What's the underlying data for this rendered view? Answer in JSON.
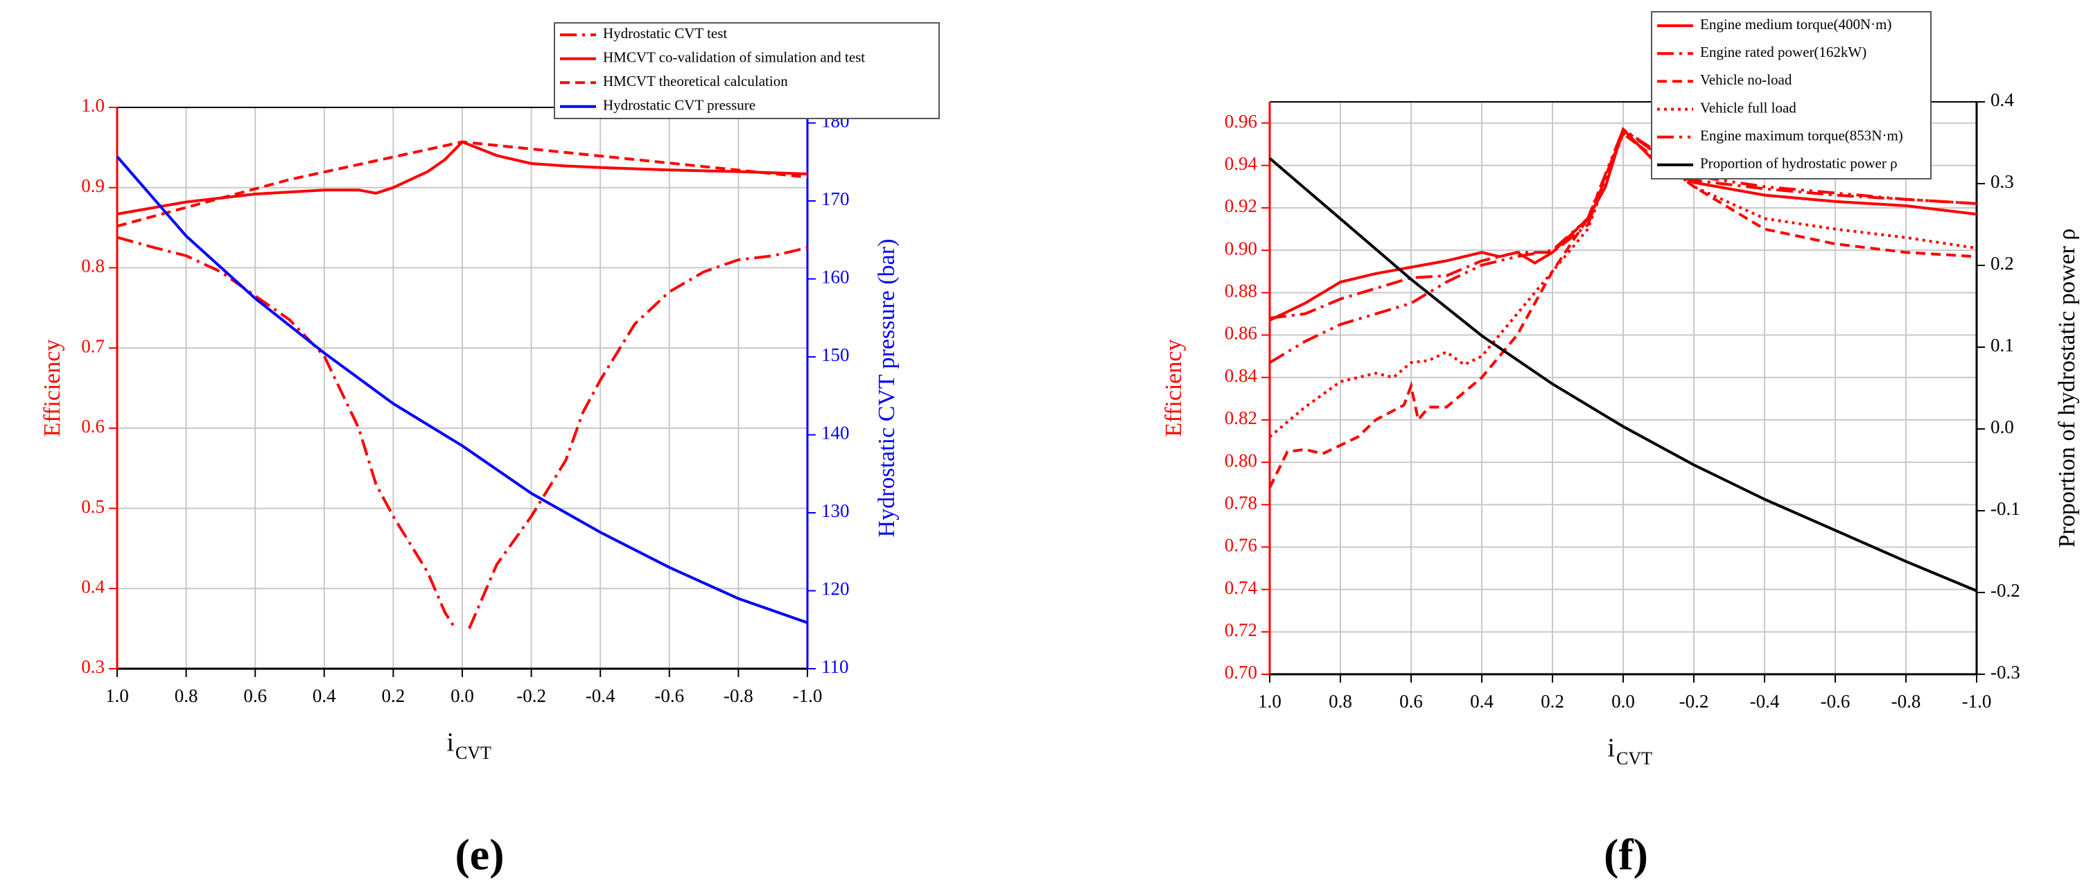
{
  "chart_data": [
    {
      "type": "line",
      "caption": "(e)",
      "x_label": "i",
      "x_label_sub": "CVT",
      "y_label": "Efficiency",
      "y2_label": "Hydrostatic CVT pressure (bar)",
      "xlim": [
        1,
        -1
      ],
      "xticks": [
        {
          "value": 1,
          "label": "1.0"
        },
        0.8,
        0.6,
        0.4,
        0.2,
        {
          "value": 0,
          "label": "0.0"
        },
        -0.2,
        -0.4,
        -0.6,
        -0.8,
        {
          "value": -1,
          "label": "-1.0"
        }
      ],
      "ylim": [
        0.3,
        1.0
      ],
      "yticks": [
        0.3,
        0.4,
        0.5,
        0.6,
        0.7,
        0.8,
        0.9,
        {
          "value": 1,
          "label": "1.0"
        }
      ],
      "y2lim": [
        110,
        182
      ],
      "y2ticks": [
        110,
        120,
        130,
        140,
        150,
        160,
        170,
        180
      ],
      "grid": true,
      "y_color": "#ff0000",
      "y2_color": "#0000ff",
      "series": [
        {
          "name": "Hydrostatic CVT test",
          "color": "#ff0000",
          "dash": "dashdot",
          "x": [
            1,
            0.9,
            0.8,
            0.7,
            0.6,
            0.5,
            0.4,
            0.3,
            0.25,
            0.2,
            0.1,
            0.05,
            0.02,
            0,
            -0.02,
            -0.1,
            -0.2,
            -0.3,
            -0.35,
            -0.4,
            -0.5,
            -0.6,
            -0.7,
            -0.8,
            -0.9,
            -1
          ],
          "values": [
            0.838,
            0.826,
            0.815,
            0.795,
            0.765,
            0.735,
            0.69,
            0.6,
            0.53,
            0.49,
            0.42,
            0.37,
            0.35,
            null,
            0.35,
            0.43,
            0.49,
            0.56,
            0.62,
            0.66,
            0.73,
            0.77,
            0.795,
            0.81,
            0.815,
            0.825
          ]
        },
        {
          "name": "HMCVT co-validation of simulation and test",
          "color": "#ff0000",
          "dash": "solid",
          "x": [
            1,
            0.8,
            0.6,
            0.4,
            0.3,
            0.25,
            0.2,
            0.1,
            0.05,
            0,
            -0.1,
            -0.2,
            -0.3,
            -0.4,
            -0.6,
            -0.8,
            -1
          ],
          "values": [
            0.867,
            0.882,
            0.892,
            0.897,
            0.897,
            0.893,
            0.9,
            0.92,
            0.935,
            0.957,
            0.94,
            0.93,
            0.927,
            0.925,
            0.922,
            0.92,
            0.917
          ]
        },
        {
          "name": "HMCVT theoretical calculation",
          "color": "#ff0000",
          "dash": "dash",
          "x": [
            1,
            0.5,
            0,
            -0.5,
            -1
          ],
          "values": [
            0.852,
            0.91,
            0.957,
            0.935,
            0.913
          ]
        },
        {
          "name": "Hydrostatic CVT pressure",
          "color": "#0000ff",
          "dash": "solid",
          "axis": "y2",
          "x": [
            1,
            0.8,
            0.6,
            0.4,
            0.2,
            0,
            -0.2,
            -0.4,
            -0.6,
            -0.8,
            -1
          ],
          "values": [
            175.7,
            165.5,
            157.5,
            150.5,
            144,
            138.6,
            132.5,
            127.5,
            123,
            119,
            115.9
          ]
        }
      ]
    },
    {
      "type": "line",
      "caption": "(f)",
      "x_label": "i",
      "x_label_sub": "CVT",
      "y_label": "Efficiency",
      "y2_label": "Proportion of hydrostatic power ρ",
      "xlim": [
        1,
        -1
      ],
      "xticks": [
        {
          "value": 1,
          "label": "1.0"
        },
        0.8,
        0.6,
        0.4,
        0.2,
        {
          "value": 0,
          "label": "0.0"
        },
        -0.2,
        -0.4,
        -0.6,
        -0.8,
        {
          "value": -1,
          "label": "-1.0"
        }
      ],
      "ylim": [
        0.7,
        0.97
      ],
      "yticks": [
        {
          "value": 0.7,
          "label": "0.70"
        },
        0.72,
        0.74,
        0.76,
        0.78,
        {
          "value": 0.8,
          "label": "0.80"
        },
        0.82,
        0.84,
        0.86,
        0.88,
        {
          "value": 0.9,
          "label": "0.90"
        },
        0.92,
        0.94,
        0.96
      ],
      "y2lim": [
        -0.3,
        0.4
      ],
      "y2ticks": [
        -0.3,
        -0.2,
        -0.1,
        {
          "value": 0,
          "label": "0.0"
        },
        0.1,
        0.2,
        0.3,
        0.4
      ],
      "grid": true,
      "y_color": "#ff0000",
      "y2_color": "#000000",
      "series": [
        {
          "name": "Engine medium torque(400N·m)",
          "color": "#ff0000",
          "dash": "solid",
          "x": [
            1,
            0.9,
            0.8,
            0.7,
            0.6,
            0.5,
            0.4,
            0.35,
            0.3,
            0.25,
            0.2,
            0.1,
            0.05,
            0,
            -0.1,
            -0.2,
            -0.4,
            -0.6,
            -0.8,
            -1
          ],
          "values": [
            0.867,
            0.875,
            0.885,
            0.889,
            0.892,
            0.895,
            0.899,
            0.897,
            0.899,
            0.894,
            0.899,
            0.915,
            0.93,
            0.957,
            0.94,
            0.932,
            0.926,
            0.923,
            0.921,
            0.917
          ]
        },
        {
          "name": "Engine rated power(162kW)",
          "color": "#ff0000",
          "dash": "dashdot",
          "x": [
            1,
            0.9,
            0.8,
            0.6,
            0.5,
            0.4,
            0.3,
            0.2,
            0.1,
            0,
            -0.2,
            -0.4,
            -0.6,
            -0.8,
            -1
          ],
          "values": [
            0.868,
            0.87,
            0.877,
            0.887,
            0.888,
            0.895,
            0.899,
            0.899,
            0.912,
            0.957,
            0.933,
            0.929,
            0.926,
            0.924,
            0.922
          ]
        },
        {
          "name": "Vehicle no-load",
          "color": "#ff0000",
          "dash": "dash",
          "x": [
            1,
            0.95,
            0.9,
            0.85,
            0.75,
            0.7,
            0.62,
            0.6,
            0.58,
            0.55,
            0.5,
            0.4,
            0.3,
            0.2,
            0.1,
            0,
            -0.2,
            -0.4,
            -0.6,
            -0.8,
            -1
          ],
          "values": [
            0.788,
            0.805,
            0.806,
            0.804,
            0.812,
            0.82,
            0.827,
            0.836,
            0.82,
            0.826,
            0.826,
            0.84,
            0.86,
            0.89,
            0.915,
            0.955,
            0.93,
            0.91,
            0.903,
            0.899,
            0.897
          ]
        },
        {
          "name": "Vehicle full load",
          "color": "#ff0000",
          "dash": "dot",
          "x": [
            1,
            0.9,
            0.8,
            0.7,
            0.65,
            0.6,
            0.55,
            0.5,
            0.45,
            0.4,
            0.3,
            0.2,
            0.1,
            0,
            -0.2,
            -0.4,
            -0.6,
            -0.8,
            -1
          ],
          "values": [
            0.812,
            0.826,
            0.838,
            0.842,
            0.84,
            0.847,
            0.848,
            0.852,
            0.846,
            0.85,
            0.87,
            0.89,
            0.91,
            0.955,
            0.93,
            0.915,
            0.91,
            0.906,
            0.901
          ]
        },
        {
          "name": "Engine maximum torque(853N·m)",
          "color": "#ff0000",
          "dash": "dashdotdot",
          "x": [
            1,
            0.9,
            0.8,
            0.6,
            0.5,
            0.4,
            0.3,
            0.2,
            0.1,
            0,
            -0.2,
            -0.4,
            -0.6,
            -0.8,
            -1
          ],
          "values": [
            0.847,
            0.857,
            0.865,
            0.875,
            0.885,
            0.893,
            0.897,
            0.9,
            0.915,
            0.957,
            0.935,
            0.93,
            0.927,
            0.924,
            0.922
          ]
        },
        {
          "name": "Proportion of hydrostatic power ρ",
          "color": "#000000",
          "dash": "solid",
          "axis": "y2",
          "x": [
            1,
            0.8,
            0.6,
            0.4,
            0.2,
            0,
            -0.2,
            -0.4,
            -0.6,
            -0.8,
            -1
          ],
          "values": [
            0.331,
            0.257,
            0.183,
            0.114,
            0.055,
            0.003,
            -0.044,
            -0.086,
            -0.124,
            -0.162,
            -0.198
          ]
        }
      ]
    }
  ]
}
